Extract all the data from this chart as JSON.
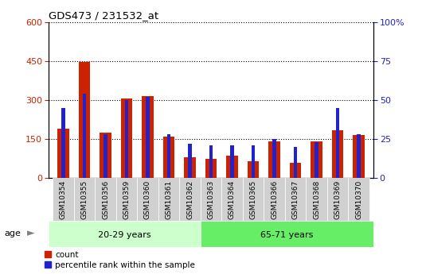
{
  "title": "GDS473 / 231532_at",
  "categories": [
    "GSM10354",
    "GSM10355",
    "GSM10356",
    "GSM10359",
    "GSM10360",
    "GSM10361",
    "GSM10362",
    "GSM10363",
    "GSM10364",
    "GSM10365",
    "GSM10366",
    "GSM10367",
    "GSM10368",
    "GSM10369",
    "GSM10370"
  ],
  "count_values": [
    190,
    445,
    175,
    305,
    315,
    160,
    80,
    75,
    85,
    65,
    140,
    60,
    140,
    185,
    165
  ],
  "percentile_values": [
    45,
    54,
    28,
    50,
    52,
    28,
    22,
    21,
    21,
    21,
    25,
    20,
    23,
    45,
    28
  ],
  "group1_label": "20-29 years",
  "group2_label": "65-71 years",
  "group1_count": 7,
  "left_ylim": [
    0,
    600
  ],
  "right_ylim": [
    0,
    100
  ],
  "left_yticks": [
    0,
    150,
    300,
    450,
    600
  ],
  "right_yticks": [
    0,
    25,
    50,
    75,
    100
  ],
  "bar_color_red": "#cc2200",
  "bar_color_blue": "#2222cc",
  "group1_bg": "#ccffcc",
  "group2_bg": "#66ee66",
  "xtick_bg": "#d0d0d0",
  "legend_label_red": "count",
  "legend_label_blue": "percentile rank within the sample",
  "age_label": "age",
  "red_bar_width": 0.55,
  "blue_bar_width": 0.18
}
